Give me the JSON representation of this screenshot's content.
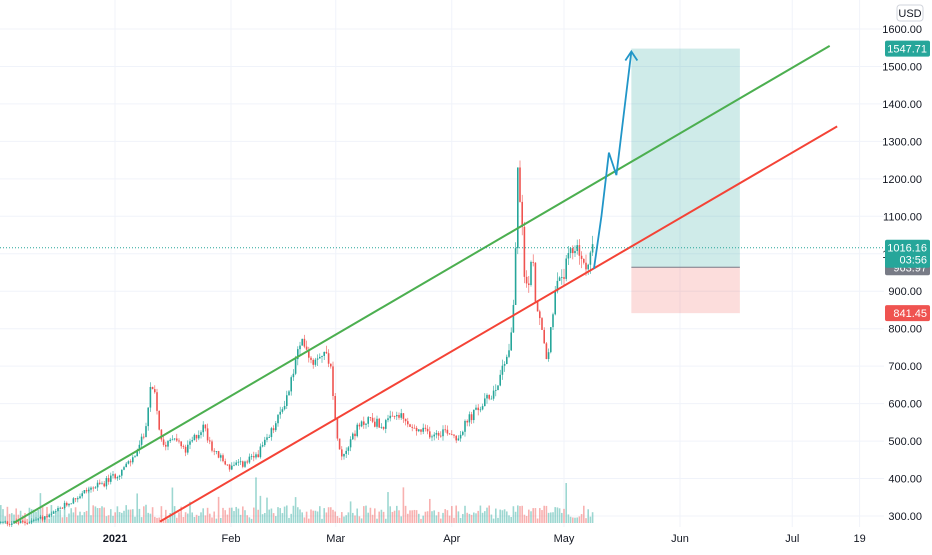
{
  "chart_data": {
    "type": "candlestick",
    "currency_label": "USD",
    "y_ticks": [
      300,
      400,
      500,
      600,
      700,
      800,
      900,
      1000,
      1100,
      1200,
      1300,
      1400,
      1500,
      1600
    ],
    "y_tick_labels": [
      "300.00",
      "400.00",
      "500.00",
      "600.00",
      "700.00",
      "800.00",
      "900.00",
      "1000.00",
      "1100.00",
      "1200.00",
      "1300.00",
      "1400.00",
      "1500.00",
      "1600.00"
    ],
    "x_ticks": [
      {
        "label": "2021",
        "date": "2021-01-01",
        "bold": true
      },
      {
        "label": "Feb",
        "date": "2021-02-01",
        "bold": false
      },
      {
        "label": "Mar",
        "date": "2021-03-01",
        "bold": false
      },
      {
        "label": "Apr",
        "date": "2021-04-01",
        "bold": false
      },
      {
        "label": "May",
        "date": "2021-05-01",
        "bold": false
      },
      {
        "label": "Jun",
        "date": "2021-06-01",
        "bold": false
      },
      {
        "label": "Jul",
        "date": "2021-07-01",
        "bold": false
      },
      {
        "label": "19",
        "date": "2021-07-19",
        "bold": false
      }
    ],
    "price_path": [
      [
        "2020-12-08",
        282
      ],
      [
        "2020-12-15",
        300
      ],
      [
        "2020-12-20",
        335
      ],
      [
        "2020-12-25",
        370
      ],
      [
        "2020-12-29",
        385
      ],
      [
        "2021-01-03",
        420
      ],
      [
        "2021-01-06",
        450
      ],
      [
        "2021-01-09",
        510
      ],
      [
        "2021-01-11",
        640
      ],
      [
        "2021-01-12",
        620
      ],
      [
        "2021-01-14",
        480
      ],
      [
        "2021-01-17",
        520
      ],
      [
        "2021-01-20",
        470
      ],
      [
        "2021-01-22",
        500
      ],
      [
        "2021-01-25",
        540
      ],
      [
        "2021-01-28",
        470
      ],
      [
        "2021-02-01",
        430
      ],
      [
        "2021-02-05",
        440
      ],
      [
        "2021-02-08",
        460
      ],
      [
        "2021-02-11",
        500
      ],
      [
        "2021-02-14",
        560
      ],
      [
        "2021-02-17",
        640
      ],
      [
        "2021-02-19",
        730
      ],
      [
        "2021-02-21",
        770
      ],
      [
        "2021-02-23",
        710
      ],
      [
        "2021-02-25",
        740
      ],
      [
        "2021-02-28",
        720
      ],
      [
        "2021-03-01",
        560
      ],
      [
        "2021-03-03",
        460
      ],
      [
        "2021-03-06",
        520
      ],
      [
        "2021-03-10",
        560
      ],
      [
        "2021-03-14",
        540
      ],
      [
        "2021-03-18",
        570
      ],
      [
        "2021-03-22",
        530
      ],
      [
        "2021-03-27",
        520
      ],
      [
        "2021-03-31",
        530
      ],
      [
        "2021-04-03",
        510
      ],
      [
        "2021-04-06",
        560
      ],
      [
        "2021-04-10",
        600
      ],
      [
        "2021-04-13",
        640
      ],
      [
        "2021-04-15",
        700
      ],
      [
        "2021-04-17",
        760
      ],
      [
        "2021-04-18",
        880
      ],
      [
        "2021-04-19",
        1210
      ],
      [
        "2021-04-20",
        1100
      ],
      [
        "2021-04-21",
        900
      ],
      [
        "2021-04-23",
        980
      ],
      [
        "2021-04-24",
        860
      ],
      [
        "2021-04-26",
        760
      ],
      [
        "2021-04-27",
        700
      ],
      [
        "2021-04-28",
        820
      ],
      [
        "2021-04-29",
        900
      ],
      [
        "2021-05-01",
        940
      ],
      [
        "2021-05-03",
        990
      ],
      [
        "2021-05-05",
        1030
      ],
      [
        "2021-05-06",
        980
      ],
      [
        "2021-05-07",
        950
      ],
      [
        "2021-05-08",
        1000
      ],
      [
        "2021-05-09",
        1016
      ]
    ],
    "projection_arrow": [
      [
        "2021-05-09",
        960
      ],
      [
        "2021-05-11",
        1100
      ],
      [
        "2021-05-13",
        1270
      ],
      [
        "2021-05-15",
        1210
      ],
      [
        "2021-05-19",
        1540
      ]
    ],
    "channel_upper": {
      "color": "#4caf50",
      "from": [
        "2020-12-05",
        282
      ],
      "to": [
        "2021-07-11",
        1555
      ]
    },
    "channel_lower": {
      "color": "#f44336",
      "from": [
        "2021-01-13",
        285
      ],
      "to": [
        "2021-07-13",
        1340
      ]
    },
    "position": {
      "from": "2021-05-19",
      "to": "2021-06-17",
      "target": 1547.71,
      "entry": 963.97,
      "stop": 841.45
    },
    "current_price": 1016.16,
    "countdown": "03:56",
    "price_tags": [
      {
        "label": "1547.71",
        "value": 1547.71,
        "color": "#26a69a"
      },
      {
        "label": "963.97",
        "value": 963.97,
        "color": "#787b86"
      },
      {
        "label": "841.45",
        "value": 841.45,
        "color": "#ef5350"
      }
    ],
    "current_tag": {
      "label": "1016.16",
      "sub": "03:56",
      "color": "#26a69a"
    }
  }
}
